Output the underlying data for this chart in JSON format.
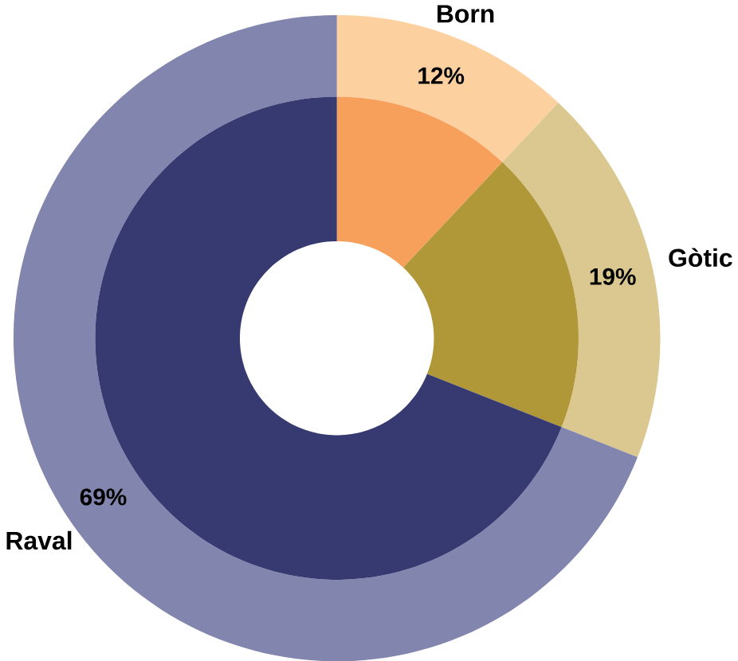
{
  "chart_data": {
    "type": "donut",
    "categories": [
      "Born",
      "Gòtic",
      "Raval"
    ],
    "series": [
      {
        "values": [
          12,
          19,
          69
        ],
        "colors": [
          "#fdd0a0",
          "#dbc891",
          "#8285ad"
        ]
      },
      {
        "values": [
          12,
          19,
          69
        ],
        "colors": [
          "#f6a05c",
          "#b09838",
          "#363a70"
        ]
      }
    ],
    "value_labels": [
      "12%",
      "19%",
      "69%"
    ]
  }
}
